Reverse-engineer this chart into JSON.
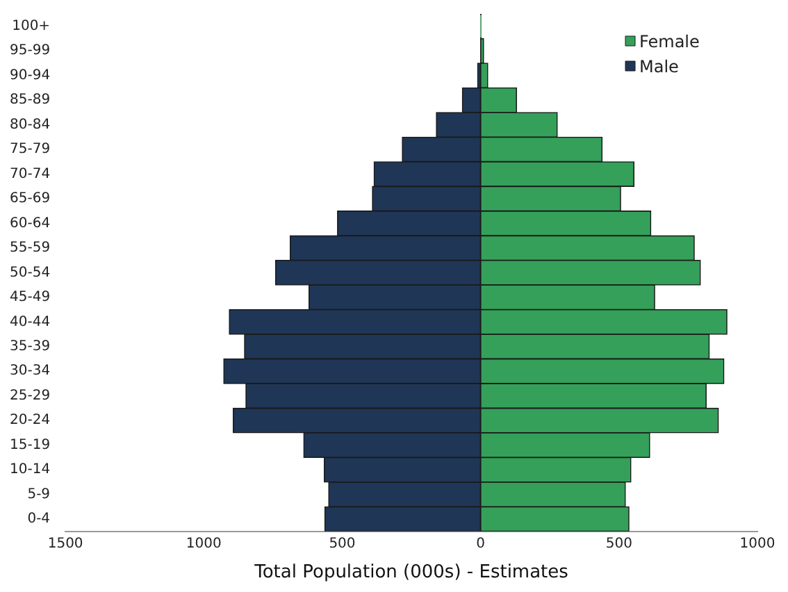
{
  "chart_data": {
    "type": "bar",
    "orientation": "horizontal",
    "stacked": true,
    "xlabel": "Total Population (000s) - Estimates",
    "categories": [
      "100+",
      "95-99",
      "90-94",
      "85-89",
      "80-84",
      "75-79",
      "70-74",
      "65-69",
      "60-64",
      "55-59",
      "50-54",
      "45-49",
      "40-44",
      "35-39",
      "30-34",
      "25-29",
      "20-24",
      "15-19",
      "10-14",
      "5-9",
      "0-4"
    ],
    "series": [
      {
        "name": "Female",
        "color": "#35a05a",
        "values": [
          2,
          11,
          26,
          130,
          277,
          439,
          554,
          506,
          615,
          772,
          794,
          629,
          890,
          826,
          879,
          815,
          859,
          611,
          543,
          523,
          536
        ]
      },
      {
        "name": "Male",
        "color": "#1f3656",
        "values": [
          0,
          null,
          -11,
          -66,
          -160,
          -283,
          -385,
          -391,
          -517,
          -688,
          -741,
          -620,
          -908,
          -853,
          -928,
          -848,
          -894,
          -639,
          -565,
          -549,
          -563
        ]
      }
    ],
    "xlim": [
      -1500,
      1000
    ],
    "xticks": [
      {
        "value": -1500,
        "label": "1500"
      },
      {
        "value": -1000,
        "label": "1000"
      },
      {
        "value": -500,
        "label": "500"
      },
      0,
      500,
      1000
    ],
    "grid": false,
    "legend": "top right"
  }
}
